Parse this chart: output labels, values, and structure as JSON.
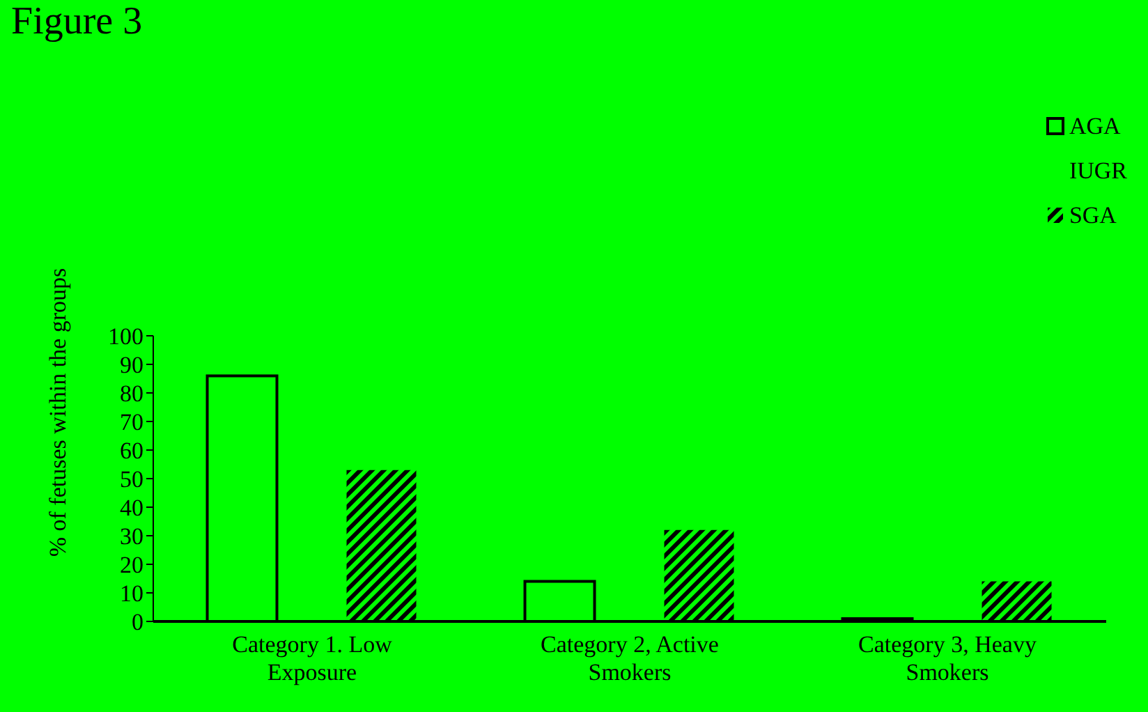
{
  "chart_data": {
    "type": "bar",
    "title": "Figure 3",
    "ylabel": "% of fetuses within the groups",
    "categories": [
      "Category 1. Low Exposure",
      "Category 2, Active Smokers",
      "Category 3, Heavy Smokers"
    ],
    "series": [
      {
        "name": "AGA",
        "color": "#00ff00",
        "values": [
          86,
          14,
          1
        ]
      },
      {
        "name": "IUGR",
        "values": [
          null,
          null,
          null
        ]
      },
      {
        "name": "SGA",
        "color": "#000000",
        "values": [
          53,
          32,
          14
        ]
      }
    ],
    "ylim": [
      0,
      100
    ],
    "yticks": [
      0,
      10,
      20,
      30,
      40,
      50,
      60,
      70,
      80,
      90,
      100
    ],
    "grid": false,
    "legend": "top right"
  }
}
